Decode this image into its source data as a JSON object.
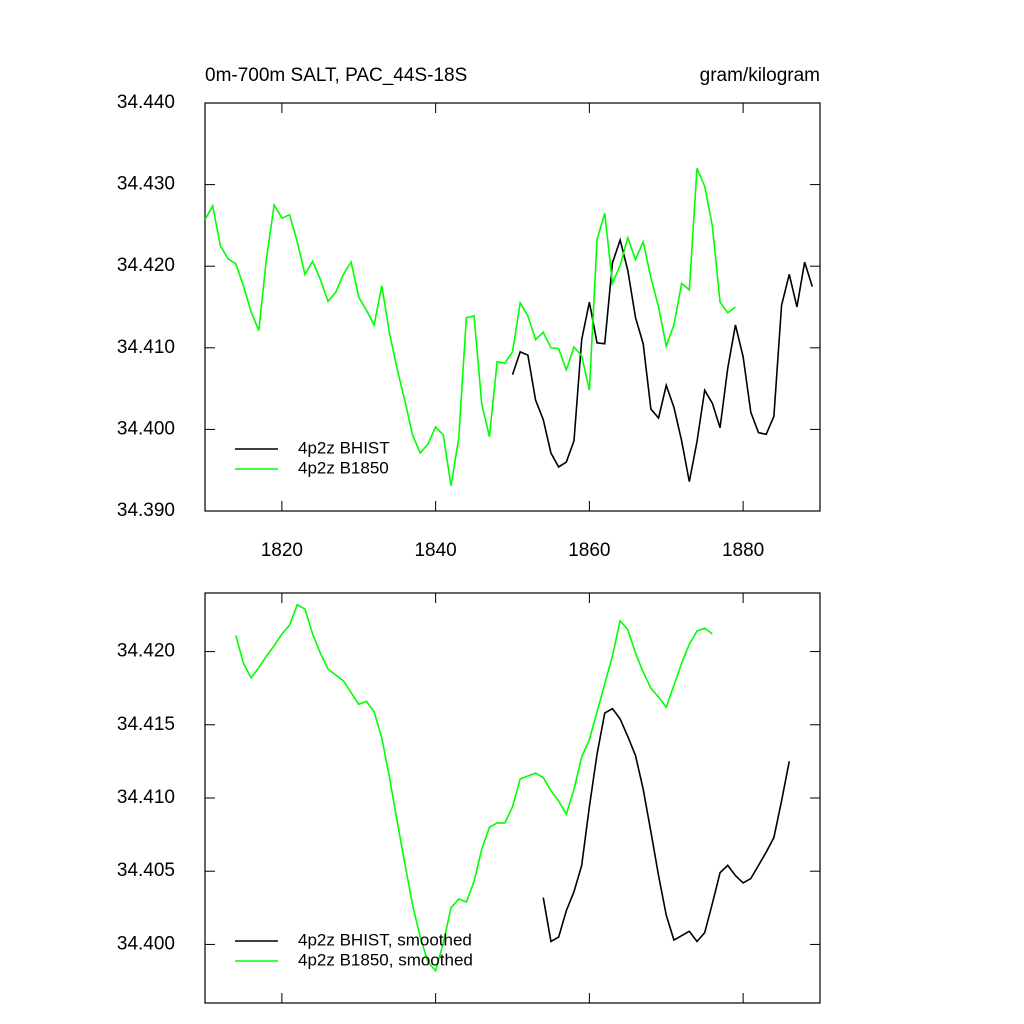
{
  "chart_data": [
    {
      "type": "line",
      "title": "0m-700m SALT, PAC_44S-18S",
      "units": "gram/kilogram",
      "xlim": [
        1810,
        1890
      ],
      "xticks": [
        1820,
        1840,
        1860,
        1880
      ],
      "xticklabels": true,
      "ylim": [
        34.39,
        34.44
      ],
      "yticks": [
        {
          "value": 34.39,
          "label": "34.390"
        },
        {
          "value": 34.4,
          "label": "34.400"
        },
        {
          "value": 34.41,
          "label": "34.410"
        },
        {
          "value": 34.42,
          "label": "34.420"
        },
        {
          "value": 34.43,
          "label": "34.430"
        },
        {
          "value": 34.44,
          "label": "34.440"
        }
      ],
      "legend": "lower left",
      "series": [
        {
          "name": "4p2z BHIST",
          "color": "#000000",
          "x": [
            1850,
            1851,
            1852,
            1853,
            1854,
            1855,
            1856,
            1857,
            1858,
            1859,
            1860,
            1861,
            1862,
            1863,
            1864,
            1865,
            1866,
            1867,
            1868,
            1869,
            1870,
            1871,
            1872,
            1873,
            1874,
            1875,
            1876,
            1877,
            1878,
            1879,
            1880,
            1881,
            1882,
            1883,
            1884,
            1885,
            1886,
            1887,
            1888,
            1889
          ],
          "values": [
            34.4067,
            34.4095,
            34.4091,
            34.4036,
            34.4012,
            34.3971,
            34.3954,
            34.396,
            34.3986,
            34.411,
            34.4156,
            34.4106,
            34.4105,
            34.4204,
            34.4232,
            34.4195,
            34.4137,
            34.4105,
            34.4025,
            34.4014,
            34.4054,
            34.4027,
            34.3986,
            34.3936,
            34.3985,
            34.4048,
            34.4032,
            34.4002,
            34.4075,
            34.4128,
            34.4089,
            34.4021,
            34.3996,
            34.3994,
            34.4016,
            34.4152,
            34.419,
            34.415,
            34.4205,
            34.4175
          ]
        },
        {
          "name": "4p2z B1850",
          "color": "#00ff00",
          "x": [
            1810,
            1811,
            1812,
            1813,
            1814,
            1815,
            1816,
            1817,
            1818,
            1819,
            1820,
            1821,
            1822,
            1823,
            1824,
            1825,
            1826,
            1827,
            1828,
            1829,
            1830,
            1831,
            1832,
            1833,
            1834,
            1835,
            1836,
            1837,
            1838,
            1839,
            1840,
            1841,
            1842,
            1843,
            1844,
            1845,
            1846,
            1847,
            1848,
            1849,
            1850,
            1851,
            1852,
            1853,
            1854,
            1855,
            1856,
            1857,
            1858,
            1859,
            1860,
            1861,
            1862,
            1863,
            1864,
            1865,
            1866,
            1867,
            1868,
            1869,
            1870,
            1871,
            1872,
            1873,
            1874,
            1875,
            1876,
            1877,
            1878,
            1879
          ],
          "values": [
            34.4257,
            34.4274,
            34.4225,
            34.4209,
            34.4203,
            34.4176,
            34.4144,
            34.4121,
            34.421,
            34.4275,
            34.4259,
            34.4263,
            34.423,
            34.419,
            34.4206,
            34.4184,
            34.4157,
            34.4168,
            34.419,
            34.4205,
            34.4162,
            34.4146,
            34.4128,
            34.4176,
            34.4118,
            34.4074,
            34.4035,
            34.3993,
            34.3971,
            34.3982,
            34.4003,
            34.3993,
            34.3931,
            34.3989,
            34.4137,
            34.4139,
            34.4031,
            34.3991,
            34.4083,
            34.4081,
            34.4095,
            34.4155,
            34.4139,
            34.411,
            34.4119,
            34.41,
            34.4099,
            34.4073,
            34.4101,
            34.409,
            34.4048,
            34.4233,
            34.4265,
            34.4179,
            34.4201,
            34.4235,
            34.4208,
            34.423,
            34.4186,
            34.415,
            34.4102,
            34.4128,
            34.4179,
            34.4171,
            34.432,
            34.4298,
            34.4249,
            34.4156,
            34.4143,
            34.415
          ]
        }
      ]
    },
    {
      "type": "line",
      "xlim": [
        1810,
        1890
      ],
      "xticks": [
        1820,
        1840,
        1860,
        1880
      ],
      "xticklabels": false,
      "ylim": [
        34.396,
        34.424
      ],
      "yticks": [
        {
          "value": 34.4,
          "label": "34.400"
        },
        {
          "value": 34.405,
          "label": "34.405"
        },
        {
          "value": 34.41,
          "label": "34.410"
        },
        {
          "value": 34.415,
          "label": "34.415"
        },
        {
          "value": 34.42,
          "label": "34.420"
        }
      ],
      "legend": "lower left",
      "series": [
        {
          "name": "4p2z BHIST, smoothed",
          "color": "#000000",
          "x": [
            1854,
            1855,
            1856,
            1857,
            1858,
            1859,
            1860,
            1861,
            1862,
            1863,
            1864,
            1865,
            1866,
            1867,
            1868,
            1869,
            1870,
            1871,
            1872,
            1873,
            1874,
            1875,
            1876,
            1877,
            1878,
            1879,
            1880,
            1881,
            1882,
            1883,
            1884,
            1885,
            1886
          ],
          "values": [
            34.4032,
            34.4002,
            34.4005,
            34.4023,
            34.4036,
            34.4054,
            34.4094,
            34.413,
            34.4158,
            34.4161,
            34.4154,
            34.4142,
            34.4129,
            34.4106,
            34.4077,
            34.4047,
            34.402,
            34.4003,
            34.4006,
            34.4009,
            34.4002,
            34.4008,
            34.4028,
            34.4049,
            34.4054,
            34.4047,
            34.4042,
            34.4045,
            34.4054,
            34.4063,
            34.4073,
            34.4098,
            34.4125
          ]
        },
        {
          "name": "4p2z B1850, smoothed",
          "color": "#00ff00",
          "x": [
            1814,
            1815,
            1816,
            1817,
            1818,
            1819,
            1820,
            1821,
            1822,
            1823,
            1824,
            1825,
            1826,
            1827,
            1828,
            1829,
            1830,
            1831,
            1832,
            1833,
            1834,
            1835,
            1836,
            1837,
            1838,
            1839,
            1840,
            1841,
            1842,
            1843,
            1844,
            1845,
            1846,
            1847,
            1848,
            1849,
            1850,
            1851,
            1852,
            1853,
            1854,
            1855,
            1856,
            1857,
            1858,
            1859,
            1860,
            1861,
            1862,
            1863,
            1864,
            1865,
            1866,
            1867,
            1868,
            1869,
            1870,
            1871,
            1872,
            1873,
            1874,
            1875,
            1876
          ],
          "values": [
            34.4211,
            34.4192,
            34.4182,
            34.4189,
            34.4197,
            34.4204,
            34.4212,
            34.4218,
            34.4232,
            34.4229,
            34.4212,
            34.4199,
            34.4188,
            34.4184,
            34.418,
            34.4172,
            34.4164,
            34.4166,
            34.4159,
            34.4141,
            34.4114,
            34.4084,
            34.4055,
            34.4027,
            34.4005,
            34.3988,
            34.3982,
            34.4001,
            34.4025,
            34.4031,
            34.4029,
            34.4043,
            34.4065,
            34.408,
            34.4083,
            34.4083,
            34.4094,
            34.4113,
            34.4115,
            34.4117,
            34.4114,
            34.4105,
            34.4098,
            34.4089,
            34.4106,
            34.4128,
            34.414,
            34.4159,
            34.4178,
            34.4197,
            34.4221,
            34.4215,
            34.4199,
            34.4186,
            34.4175,
            34.4169,
            34.4162,
            34.4177,
            34.4192,
            34.4205,
            34.4214,
            34.4216,
            34.4212
          ]
        }
      ]
    }
  ]
}
